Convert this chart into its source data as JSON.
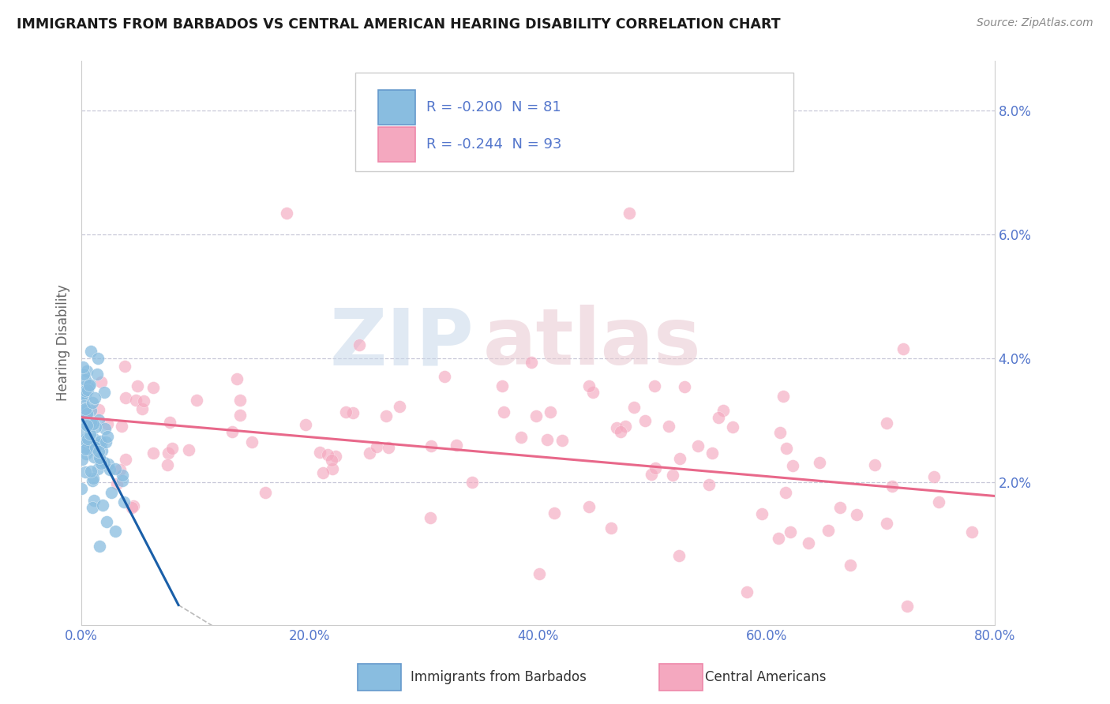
{
  "title": "IMMIGRANTS FROM BARBADOS VS CENTRAL AMERICAN HEARING DISABILITY CORRELATION CHART",
  "source": "Source: ZipAtlas.com",
  "ylabel": "Hearing Disability",
  "xlim": [
    0.0,
    80.0
  ],
  "ylim": [
    -0.3,
    8.8
  ],
  "ytick_vals": [
    2.0,
    4.0,
    6.0,
    8.0
  ],
  "xtick_vals": [
    0.0,
    20.0,
    40.0,
    60.0,
    80.0
  ],
  "legend_label1": "Immigrants from Barbados",
  "legend_label2": "Central Americans",
  "color_blue": "#89bde0",
  "color_pink": "#f4a8bf",
  "color_blue_line": "#1a5fa8",
  "color_pink_line": "#e8688a",
  "color_gray_line": "#bbbbbb",
  "background_color": "#ffffff",
  "grid_color": "#c8c8d8",
  "tick_color": "#5577cc",
  "R1": -0.2,
  "N1": 81,
  "R2": -0.244,
  "N2": 93,
  "blue_line_x": [
    0.0,
    8.5
  ],
  "blue_line_y": [
    3.05,
    0.02
  ],
  "gray_line_x": [
    8.5,
    22.0
  ],
  "gray_line_y": [
    0.02,
    -1.5
  ],
  "pink_line_x": [
    0.0,
    80.0
  ],
  "pink_line_y": [
    3.05,
    1.78
  ]
}
